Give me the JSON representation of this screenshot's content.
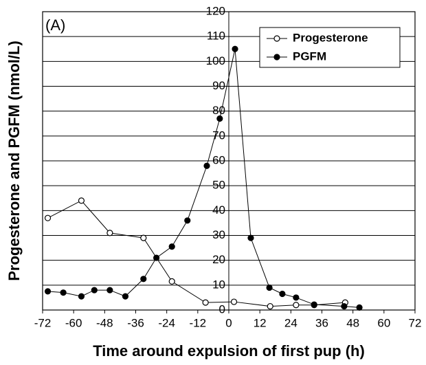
{
  "chart_data": {
    "type": "line",
    "annotation": "(A)",
    "xlabel": "Time around expulsion of first pup (h)",
    "ylabel": "Progesterone and PGFM (nmol/L)",
    "xlim": [
      -72,
      72
    ],
    "xticks": [
      -72,
      -60,
      -48,
      -36,
      -24,
      -12,
      0,
      12,
      24,
      36,
      48,
      60,
      72
    ],
    "ylim": [
      0,
      120
    ],
    "yticks": [
      0,
      10,
      20,
      30,
      40,
      50,
      60,
      70,
      80,
      90,
      100,
      110,
      120
    ],
    "grid": true,
    "legend": "upper right",
    "series": [
      {
        "name": "Progesterone",
        "color": "#000000",
        "marker": "open",
        "x": [
          -70,
          -57,
          -46,
          -33,
          -22,
          -9,
          2,
          16,
          26,
          33,
          45
        ],
        "values": [
          37,
          44,
          31,
          29,
          11.5,
          3,
          3.3,
          1.5,
          2,
          2,
          3
        ]
      },
      {
        "name": "PGFM",
        "color": "#000000",
        "marker": "filled",
        "x": [
          -70,
          -64,
          -57,
          -52,
          -46,
          -40,
          -33,
          -28,
          -22,
          -16,
          -8.5,
          -3.5,
          2.4,
          8.5,
          15.7,
          20.7,
          26,
          33,
          44.6,
          50.5
        ],
        "values": [
          7.5,
          7,
          5.5,
          8,
          8,
          5.5,
          12.5,
          21,
          25.5,
          36,
          58,
          77,
          105,
          29,
          9,
          6.5,
          5,
          2.2,
          1.5,
          1
        ]
      }
    ]
  }
}
